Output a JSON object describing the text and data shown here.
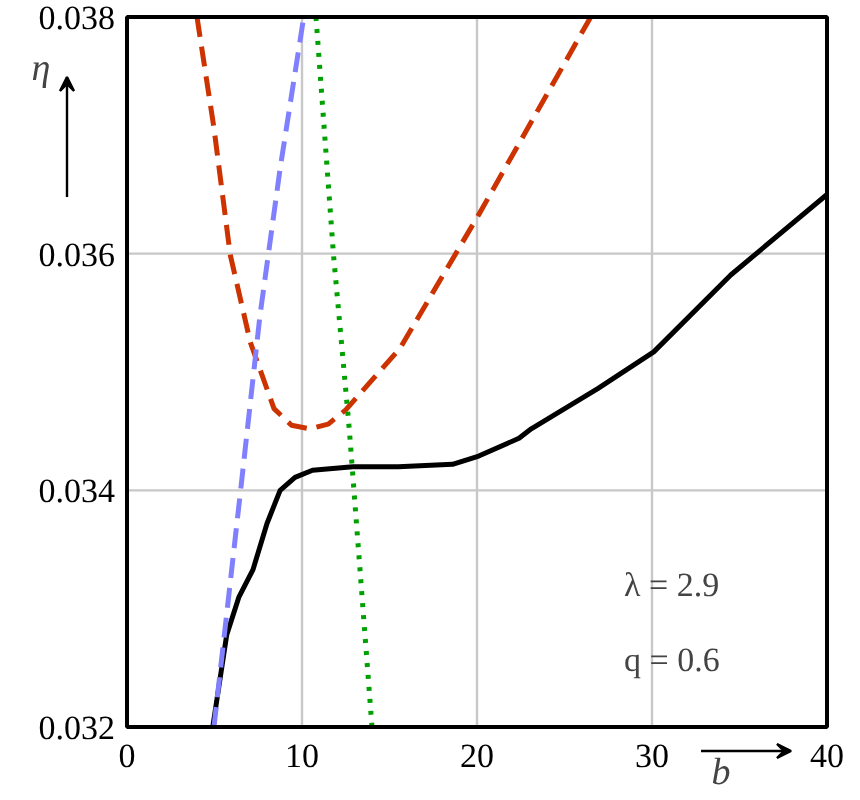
{
  "chart_data": {
    "type": "line",
    "xlabel": "b",
    "ylabel": "η",
    "xlim": [
      0,
      40
    ],
    "ylim": [
      0.032,
      0.038
    ],
    "xticks": [
      0,
      10,
      20,
      30,
      40
    ],
    "yticks": [
      0.032,
      0.034,
      0.036,
      0.038
    ],
    "grid": true,
    "annotations": [
      "λ = 2.9",
      "q = 0.6"
    ],
    "series": [
      {
        "color": "#000000",
        "line_style": "solid",
        "x": [
          4.9,
          5.7,
          6.4,
          7.2,
          8.0,
          8.75,
          9.6,
          10.6,
          12.9,
          15.5,
          18.6,
          20.1,
          22.4,
          23.1,
          26.9,
          30.1,
          34.5,
          40
        ],
        "values": [
          0.032,
          0.03278,
          0.0331,
          0.03333,
          0.03372,
          0.034,
          0.03411,
          0.03417,
          0.0342,
          0.0342,
          0.03422,
          0.03429,
          0.03444,
          0.03452,
          0.03486,
          0.03517,
          0.03582,
          0.0365
        ]
      },
      {
        "color": "#cc3300",
        "line_style": "dashed",
        "x": [
          4.0,
          4.97,
          5.9,
          7.05,
          8.4,
          9.4,
          10.45,
          11.5,
          12.5,
          15.6,
          20.1,
          26.5
        ],
        "values": [
          0.038,
          0.03706,
          0.03599,
          0.03525,
          0.03469,
          0.03455,
          0.03452,
          0.03456,
          0.03468,
          0.0352,
          0.03633,
          0.038
        ]
      },
      {
        "color": "#8080ff",
        "line_style": "dashed",
        "x": [
          4.97,
          6.5,
          7.6,
          8.75,
          10.1
        ],
        "values": [
          0.032,
          0.03401,
          0.03548,
          0.03672,
          0.038
        ]
      },
      {
        "color": "#00a000",
        "line_style": "dotted",
        "x": [
          10.8,
          11.8,
          12.7,
          14.0
        ],
        "values": [
          0.038,
          0.03599,
          0.03452,
          0.032
        ]
      }
    ]
  }
}
